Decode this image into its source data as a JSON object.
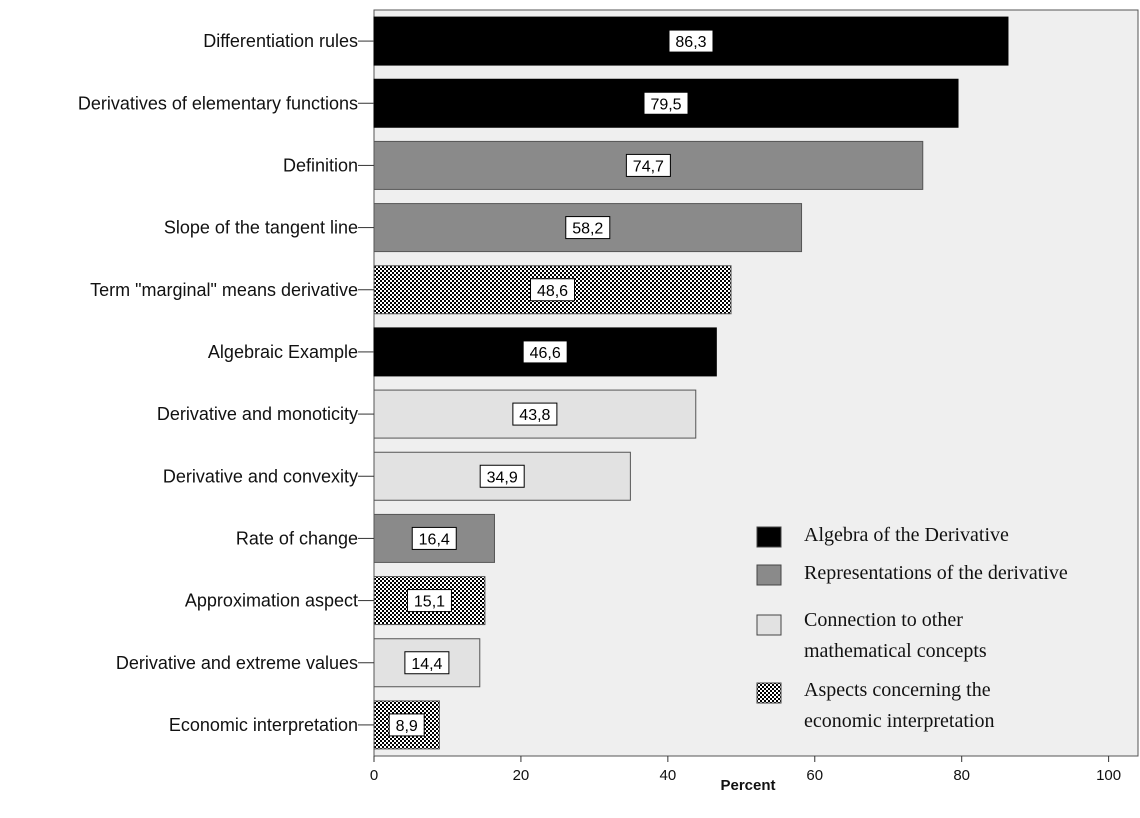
{
  "chart_data": {
    "type": "bar",
    "orientation": "horizontal",
    "xlabel": "Percent",
    "xlim": [
      0,
      104
    ],
    "xticks": [
      0,
      20,
      40,
      60,
      80,
      100
    ],
    "grid": false,
    "legend_position": "bottom-right",
    "categories": [
      "Differentiation rules",
      "Derivatives of elementary functions",
      "Definition",
      "Slope of the tangent line",
      "Term \"marginal\" means derivative",
      "Algebraic Example",
      "Derivative and monoticity",
      "Derivative and convexity",
      "Rate of change",
      "Approximation aspect",
      "Derivative and extreme values",
      "Economic interpretation"
    ],
    "values": [
      86.3,
      79.5,
      74.7,
      58.2,
      48.6,
      46.6,
      43.8,
      34.9,
      16.4,
      15.1,
      14.4,
      8.9
    ],
    "value_labels": [
      "86,3",
      "79,5",
      "74,7",
      "58,2",
      "48,6",
      "46,6",
      "43,8",
      "34,9",
      "16,4",
      "15,1",
      "14,4",
      "8,9"
    ],
    "groups": [
      "algebra",
      "algebra",
      "representations",
      "representations",
      "economic",
      "algebra",
      "connection",
      "connection",
      "representations",
      "economic",
      "connection",
      "economic"
    ],
    "legend": [
      {
        "key": "algebra",
        "lines": [
          "Algebra of the Derivative"
        ],
        "color": "#000000",
        "pattern": "solid"
      },
      {
        "key": "representations",
        "lines": [
          "Representations of the derivative"
        ],
        "color": "#8a8a8a",
        "pattern": "solid"
      },
      {
        "key": "connection",
        "lines": [
          "Connection to other",
          "mathematical concepts"
        ],
        "color": "#e2e2e2",
        "pattern": "solid"
      },
      {
        "key": "economic",
        "lines": [
          "Aspects concerning the",
          "economic interpretation"
        ],
        "color": "#000000",
        "pattern": "checker"
      }
    ],
    "plot_background": "#efefef"
  }
}
